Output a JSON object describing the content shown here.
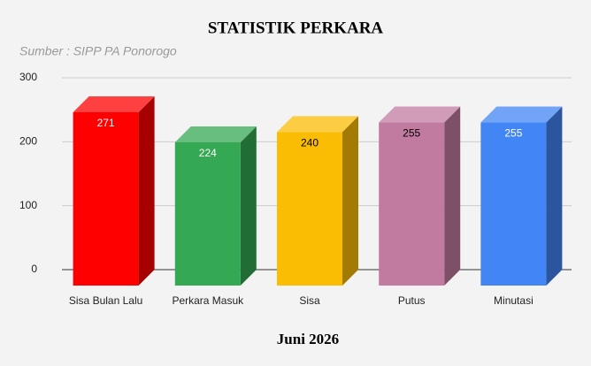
{
  "chart_data": {
    "type": "bar3d",
    "title": "STATISTIK PERKARA",
    "subtitle": "Sumber : SIPP PA Ponorogo",
    "x_label": "Juni 2026",
    "categories": [
      "Sisa Bulan Lalu",
      "Perkara Masuk",
      "Sisa",
      "Putus",
      "Minutasi"
    ],
    "values": [
      271,
      224,
      240,
      255,
      255
    ],
    "colors": [
      "#ff0000",
      "#34a853",
      "#fbbc04",
      "#c27ba0",
      "#4285f4"
    ],
    "ylim": [
      0,
      300
    ],
    "yticks": [
      0,
      100,
      200,
      300
    ],
    "grid": true
  }
}
